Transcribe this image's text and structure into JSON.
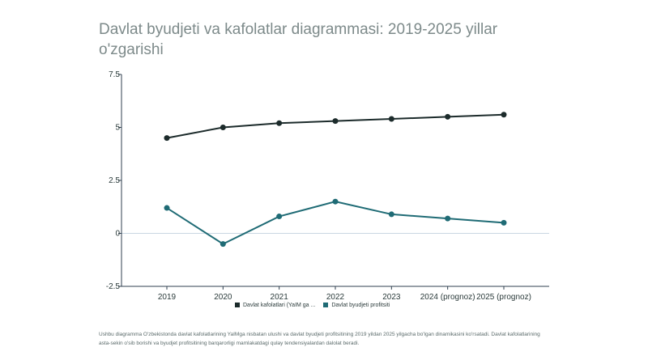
{
  "title": "Davlat byudjeti va kafolatlar diagrammasi: 2019-2025 yillar o'zgarishi",
  "note": "Ushbu diagramma O'zbekistonda davlat kafolatlarining YaIMga nisbatan ulushi va davlat byudjeti profitsitining 2019 yildan 2025 yilgacha bo'lgan dinamikasini ko'rsatadi. Davlat kafolatlarining asta-sekin o'sib borishi va byudjet profitsitining barqarorligi mamlakatdagi qulay tendensiyalardan dalolat beradi.",
  "colors": {
    "series_1": "#1c2b2b",
    "series_2": "#1f6b75",
    "axis": "#2f3f4f",
    "zero_line": "#c9d6e2"
  },
  "chart_data": {
    "type": "line",
    "title": "Davlat byudjeti va kafolatlar diagrammasi: 2019-2025 yillar o'zgarishi",
    "xlabel": "",
    "ylabel": "",
    "categories": [
      "2019",
      "2020",
      "2021",
      "2022",
      "2023",
      "2024 (prognoz)",
      "2025 (prognoz)"
    ],
    "yticks": [
      "-2.5",
      "0",
      "2.5",
      "5",
      "7.5"
    ],
    "ylim": [
      -2.5,
      7.5
    ],
    "grid": false,
    "legend_position": "bottom",
    "series": [
      {
        "name": "Davlat kafolatlari (YaIM ga ...",
        "values": [
          4.5,
          5.0,
          5.2,
          5.3,
          5.4,
          5.5,
          5.6
        ]
      },
      {
        "name": "Davlat byudjeti profitsiti",
        "values": [
          1.2,
          -0.5,
          0.8,
          1.5,
          0.9,
          0.7,
          0.5
        ]
      }
    ]
  }
}
